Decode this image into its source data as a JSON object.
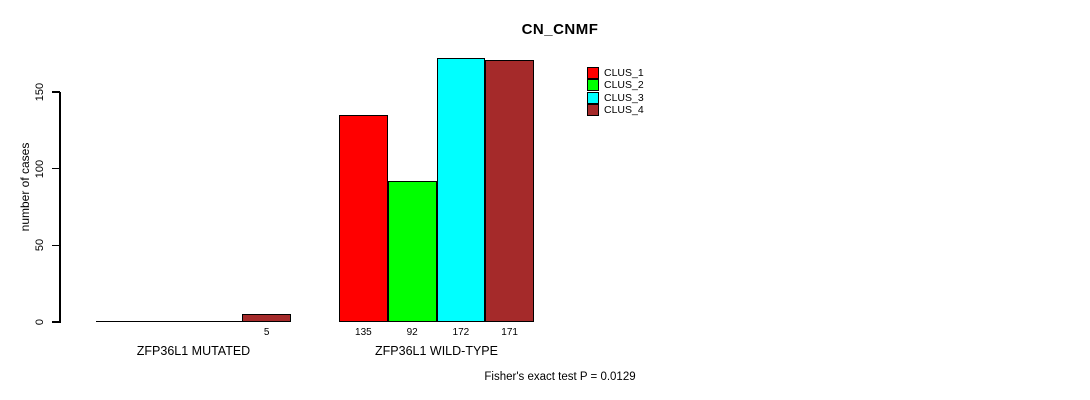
{
  "title": "CN_CNMF",
  "footer": "Fisher's exact test P = 0.0129",
  "chart_data": {
    "type": "bar",
    "title": "CN_CNMF",
    "xlabel": "",
    "ylabel": "number of cases",
    "categories": [
      "ZFP36L1 MUTATED",
      "ZFP36L1 WILD-TYPE"
    ],
    "series": [
      {
        "name": "CLUS_1",
        "color": "#ff0000",
        "values": [
          0,
          135
        ]
      },
      {
        "name": "CLUS_2",
        "color": "#00ff00",
        "values": [
          0,
          92
        ]
      },
      {
        "name": "CLUS_3",
        "color": "#00ffff",
        "values": [
          0,
          172
        ]
      },
      {
        "name": "CLUS_4",
        "color": "#a52a2a",
        "values": [
          5,
          171
        ]
      }
    ],
    "bar_value_labels": [
      [
        "",
        "",
        "",
        "5"
      ],
      [
        "135",
        "92",
        "172",
        "171"
      ]
    ],
    "yticks": [
      0,
      50,
      100,
      150
    ],
    "ylim": [
      0,
      172
    ],
    "grid": "off",
    "legend_position": "top-right",
    "legend_entries": [
      "CLUS_1",
      "CLUS_2",
      "CLUS_3",
      "CLUS_4"
    ],
    "annotation": "Fisher's exact test P = 0.0129"
  },
  "colors": {
    "clus_1": "#ff0000",
    "clus_2": "#00ff00",
    "clus_3": "#00ffff",
    "clus_4": "#a52a2a",
    "axis": "#000000",
    "background": "#ffffff"
  }
}
